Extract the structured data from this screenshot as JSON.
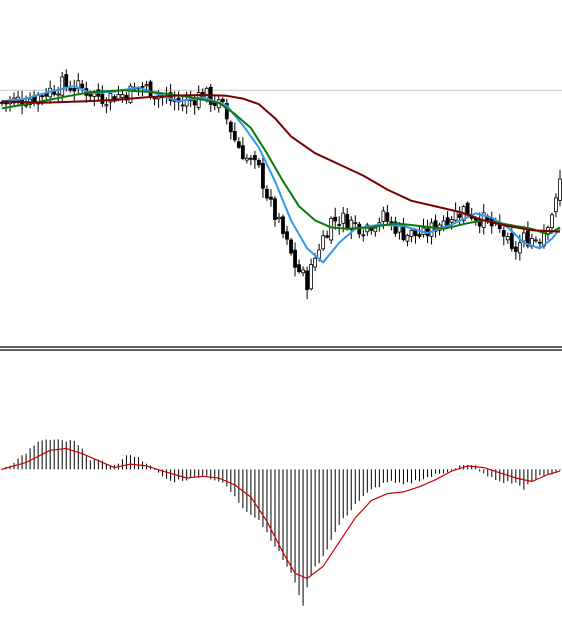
{
  "chart_data": [
    {
      "type": "candlestick",
      "title": "",
      "grid": false,
      "legend": "none",
      "bar_count": 140,
      "y_range": [
        0,
        1000
      ],
      "reference_line": 885,
      "colors": {
        "candle": "#000000",
        "ma_fast": "#3399ee",
        "ma_mid": "#0b7a0b",
        "ma_slow": "#7a0000",
        "reference_line": "#c8c8c8"
      },
      "close_anchors": [
        [
          0,
          840
        ],
        [
          8,
          860
        ],
        [
          15,
          905
        ],
        [
          20,
          890
        ],
        [
          25,
          860
        ],
        [
          30,
          870
        ],
        [
          35,
          900
        ],
        [
          40,
          860
        ],
        [
          45,
          835
        ],
        [
          50,
          875
        ],
        [
          55,
          820
        ],
        [
          58,
          710
        ],
        [
          61,
          640
        ],
        [
          64,
          600
        ],
        [
          67,
          470
        ],
        [
          70,
          370
        ],
        [
          73,
          260
        ],
        [
          76,
          200
        ],
        [
          79,
          330
        ],
        [
          82,
          420
        ],
        [
          85,
          425
        ],
        [
          90,
          395
        ],
        [
          95,
          430
        ],
        [
          100,
          375
        ],
        [
          105,
          365
        ],
        [
          110,
          425
        ],
        [
          115,
          460
        ],
        [
          120,
          420
        ],
        [
          125,
          370
        ],
        [
          127,
          300
        ],
        [
          130,
          355
        ],
        [
          134,
          360
        ],
        [
          138,
          480
        ],
        [
          139,
          560
        ]
      ],
      "series": [
        {
          "type": "line",
          "role": "ma_fast",
          "points": [
            [
              0,
              845
            ],
            [
              6,
              855
            ],
            [
              12,
              880
            ],
            [
              18,
              900
            ],
            [
              22,
              875
            ],
            [
              28,
              880
            ],
            [
              34,
              895
            ],
            [
              38,
              875
            ],
            [
              44,
              845
            ],
            [
              50,
              860
            ],
            [
              56,
              830
            ],
            [
              60,
              760
            ],
            [
              64,
              680
            ],
            [
              68,
              560
            ],
            [
              72,
              420
            ],
            [
              76,
              320
            ],
            [
              80,
              270
            ],
            [
              84,
              340
            ],
            [
              88,
              390
            ],
            [
              94,
              405
            ],
            [
              100,
              400
            ],
            [
              106,
              375
            ],
            [
              112,
              405
            ],
            [
              118,
              445
            ],
            [
              122,
              430
            ],
            [
              126,
              395
            ],
            [
              130,
              340
            ],
            [
              134,
              320
            ],
            [
              137,
              355
            ],
            [
              139,
              390
            ]
          ]
        },
        {
          "type": "line",
          "role": "ma_mid",
          "points": [
            [
              0,
              820
            ],
            [
              8,
              840
            ],
            [
              15,
              860
            ],
            [
              22,
              878
            ],
            [
              30,
              885
            ],
            [
              38,
              878
            ],
            [
              46,
              862
            ],
            [
              54,
              840
            ],
            [
              58,
              800
            ],
            [
              62,
              750
            ],
            [
              66,
              660
            ],
            [
              70,
              560
            ],
            [
              74,
              470
            ],
            [
              78,
              420
            ],
            [
              82,
              395
            ],
            [
              86,
              390
            ],
            [
              92,
              395
            ],
            [
              98,
              410
            ],
            [
              104,
              400
            ],
            [
              110,
              390
            ],
            [
              116,
              410
            ],
            [
              120,
              420
            ],
            [
              126,
              405
            ],
            [
              132,
              390
            ],
            [
              136,
              370
            ],
            [
              139,
              395
            ]
          ]
        },
        {
          "type": "line",
          "role": "ma_slow",
          "points": [
            [
              0,
              845
            ],
            [
              10,
              840
            ],
            [
              20,
              845
            ],
            [
              28,
              850
            ],
            [
              36,
              860
            ],
            [
              44,
              866
            ],
            [
              50,
              868
            ],
            [
              56,
              865
            ],
            [
              60,
              855
            ],
            [
              64,
              835
            ],
            [
              68,
              785
            ],
            [
              72,
              720
            ],
            [
              78,
              660
            ],
            [
              84,
              620
            ],
            [
              90,
              580
            ],
            [
              96,
              530
            ],
            [
              102,
              490
            ],
            [
              108,
              470
            ],
            [
              114,
              450
            ],
            [
              120,
              420
            ],
            [
              126,
              400
            ],
            [
              132,
              385
            ],
            [
              139,
              380
            ]
          ]
        }
      ]
    },
    {
      "type": "macd",
      "title": "",
      "grid": false,
      "legend": "none",
      "y_range": [
        -400,
        200
      ],
      "zero_line": 0,
      "colors": {
        "histogram": "#000000",
        "signal": "#cc0000"
      },
      "histogram_anchors": [
        [
          0,
          0
        ],
        [
          4,
          30
        ],
        [
          10,
          85
        ],
        [
          18,
          80
        ],
        [
          22,
          30
        ],
        [
          28,
          10
        ],
        [
          32,
          45
        ],
        [
          36,
          20
        ],
        [
          38,
          -5
        ],
        [
          42,
          -35
        ],
        [
          48,
          -25
        ],
        [
          50,
          -15
        ],
        [
          54,
          -35
        ],
        [
          56,
          -50
        ],
        [
          60,
          -110
        ],
        [
          64,
          -145
        ],
        [
          68,
          -220
        ],
        [
          72,
          -300
        ],
        [
          75,
          -390
        ],
        [
          77,
          -300
        ],
        [
          80,
          -250
        ],
        [
          84,
          -160
        ],
        [
          88,
          -100
        ],
        [
          92,
          -60
        ],
        [
          96,
          -35
        ],
        [
          100,
          -45
        ],
        [
          104,
          -30
        ],
        [
          110,
          -10
        ],
        [
          114,
          10
        ],
        [
          118,
          10
        ],
        [
          120,
          -15
        ],
        [
          124,
          -35
        ],
        [
          128,
          -40
        ],
        [
          130,
          -55
        ],
        [
          134,
          -20
        ],
        [
          138,
          -10
        ],
        [
          139,
          0
        ]
      ],
      "signal_points": [
        [
          0,
          0
        ],
        [
          6,
          20
        ],
        [
          12,
          55
        ],
        [
          16,
          60
        ],
        [
          20,
          45
        ],
        [
          24,
          25
        ],
        [
          28,
          5
        ],
        [
          32,
          15
        ],
        [
          36,
          10
        ],
        [
          40,
          -5
        ],
        [
          46,
          -25
        ],
        [
          50,
          -20
        ],
        [
          54,
          -25
        ],
        [
          58,
          -45
        ],
        [
          62,
          -80
        ],
        [
          66,
          -150
        ],
        [
          70,
          -240
        ],
        [
          73,
          -300
        ],
        [
          76,
          -315
        ],
        [
          80,
          -280
        ],
        [
          84,
          -210
        ],
        [
          88,
          -140
        ],
        [
          92,
          -90
        ],
        [
          96,
          -70
        ],
        [
          100,
          -65
        ],
        [
          104,
          -50
        ],
        [
          108,
          -30
        ],
        [
          112,
          -5
        ],
        [
          116,
          10
        ],
        [
          120,
          5
        ],
        [
          124,
          -10
        ],
        [
          128,
          -25
        ],
        [
          132,
          -35
        ],
        [
          136,
          -15
        ],
        [
          139,
          -5
        ]
      ]
    }
  ]
}
